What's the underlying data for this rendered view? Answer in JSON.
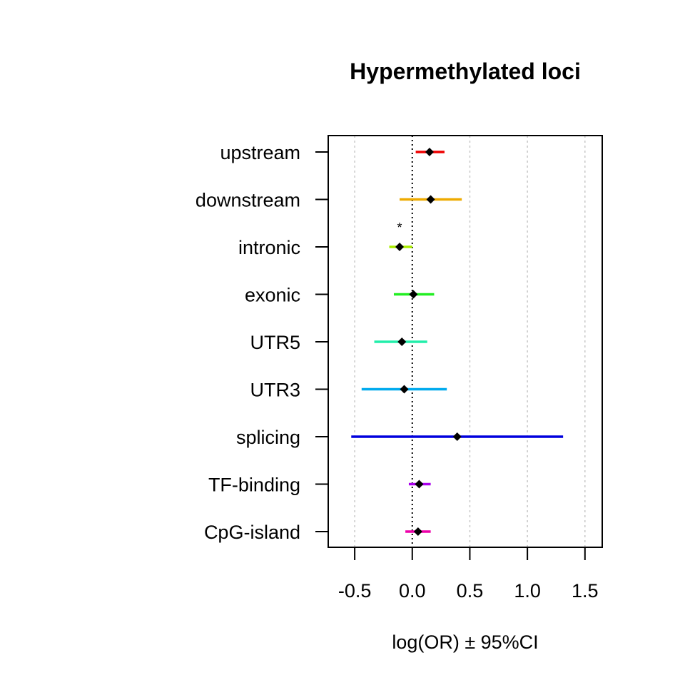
{
  "chart_data": {
    "type": "forest",
    "title": "Hypermethylated loci",
    "xlabel": "log(OR) ± 95%CI",
    "xlim": [
      -0.73,
      1.65
    ],
    "xticks": [
      -0.5,
      0.0,
      0.5,
      1.0,
      1.5
    ],
    "xtick_labels": [
      "-0.5",
      "0.0",
      "0.5",
      "1.0",
      "1.5"
    ],
    "grid": "vertical dotted at ticks",
    "reference_line": 0,
    "categories": [
      "upstream",
      "downstream",
      "intronic",
      "exonic",
      "UTR5",
      "UTR3",
      "splicing",
      "TF-binding",
      "CpG-island"
    ],
    "estimates": [
      0.15,
      0.16,
      -0.11,
      0.01,
      -0.09,
      -0.07,
      0.39,
      0.06,
      0.05
    ],
    "ci_low": [
      0.03,
      -0.11,
      -0.2,
      -0.16,
      -0.33,
      -0.44,
      -0.53,
      -0.03,
      -0.06
    ],
    "ci_high": [
      0.28,
      0.43,
      0.0,
      0.19,
      0.13,
      0.3,
      1.31,
      0.16,
      0.16
    ],
    "colors": [
      "#ee0000",
      "#eeaa00",
      "#aaee00",
      "#22ee22",
      "#22eeaa",
      "#00aaee",
      "#0000dd",
      "#aa00ee",
      "#ee00aa"
    ],
    "significance_marks": [
      {
        "category": "intronic",
        "mark": "*",
        "x": -0.11
      }
    ]
  }
}
